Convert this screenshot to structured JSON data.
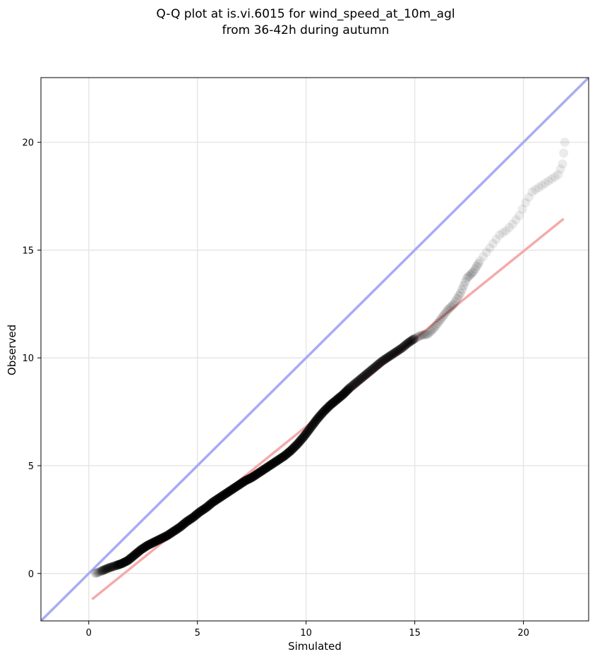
{
  "chart_data": {
    "type": "scatter",
    "title": [
      "Q-Q plot at is.vi.6015 for wind_speed_at_10m_agl",
      "from 36-42h during autumn"
    ],
    "xlabel": "Simulated",
    "ylabel": "Observed",
    "xlim": [
      -2.2,
      23
    ],
    "ylim": [
      -2.2,
      23
    ],
    "xticks": [
      0,
      5,
      10,
      15,
      20
    ],
    "yticks": [
      0,
      5,
      10,
      15,
      20
    ],
    "grid": true,
    "quantile_points": {
      "marker_color": "#000000",
      "x": [
        0.3,
        0.6,
        0.9,
        1.2,
        1.5,
        1.8,
        2.1,
        2.4,
        2.7,
        3.0,
        3.3,
        3.6,
        3.9,
        4.2,
        4.5,
        4.8,
        5.1,
        5.4,
        5.7,
        6.0,
        6.3,
        6.6,
        6.9,
        7.2,
        7.5,
        7.8,
        8.1,
        8.4,
        8.7,
        9.0,
        9.3,
        9.6,
        9.9,
        10.2,
        10.5,
        10.8,
        11.1,
        11.4,
        11.7,
        12.0,
        12.3,
        12.6,
        12.9,
        13.2,
        13.5,
        13.8,
        14.1,
        14.4,
        14.7,
        15.0,
        15.3,
        15.6,
        15.9,
        16.2,
        16.5,
        16.8,
        17.1,
        17.4,
        17.7,
        18.0,
        18.3,
        18.6,
        18.9,
        19.2,
        19.5,
        19.8,
        20.1,
        20.4,
        20.7,
        21.0,
        21.3,
        21.6,
        21.8,
        21.9
      ],
      "y": [
        0.0,
        0.12,
        0.25,
        0.35,
        0.45,
        0.6,
        0.85,
        1.1,
        1.3,
        1.45,
        1.6,
        1.75,
        1.95,
        2.15,
        2.4,
        2.6,
        2.85,
        3.05,
        3.3,
        3.5,
        3.7,
        3.9,
        4.1,
        4.3,
        4.45,
        4.65,
        4.85,
        5.05,
        5.25,
        5.45,
        5.7,
        6.0,
        6.35,
        6.75,
        7.15,
        7.5,
        7.8,
        8.05,
        8.3,
        8.6,
        8.85,
        9.1,
        9.35,
        9.6,
        9.85,
        10.05,
        10.25,
        10.45,
        10.7,
        10.9,
        11.05,
        11.1,
        11.4,
        11.8,
        12.2,
        12.5,
        13.0,
        13.7,
        14.0,
        14.5,
        14.9,
        15.3,
        15.7,
        15.9,
        16.2,
        16.6,
        17.2,
        17.7,
        17.9,
        18.1,
        18.3,
        18.5,
        19.0,
        20.0
      ]
    },
    "reference_line": {
      "name": "y = x",
      "color": "#aaaaf5",
      "x": [
        -2.2,
        23
      ],
      "y": [
        -2.2,
        23
      ]
    },
    "fit_line": {
      "color": "#f5aaaa",
      "x": [
        0.15,
        21.85
      ],
      "y": [
        -1.2,
        16.45
      ]
    }
  }
}
